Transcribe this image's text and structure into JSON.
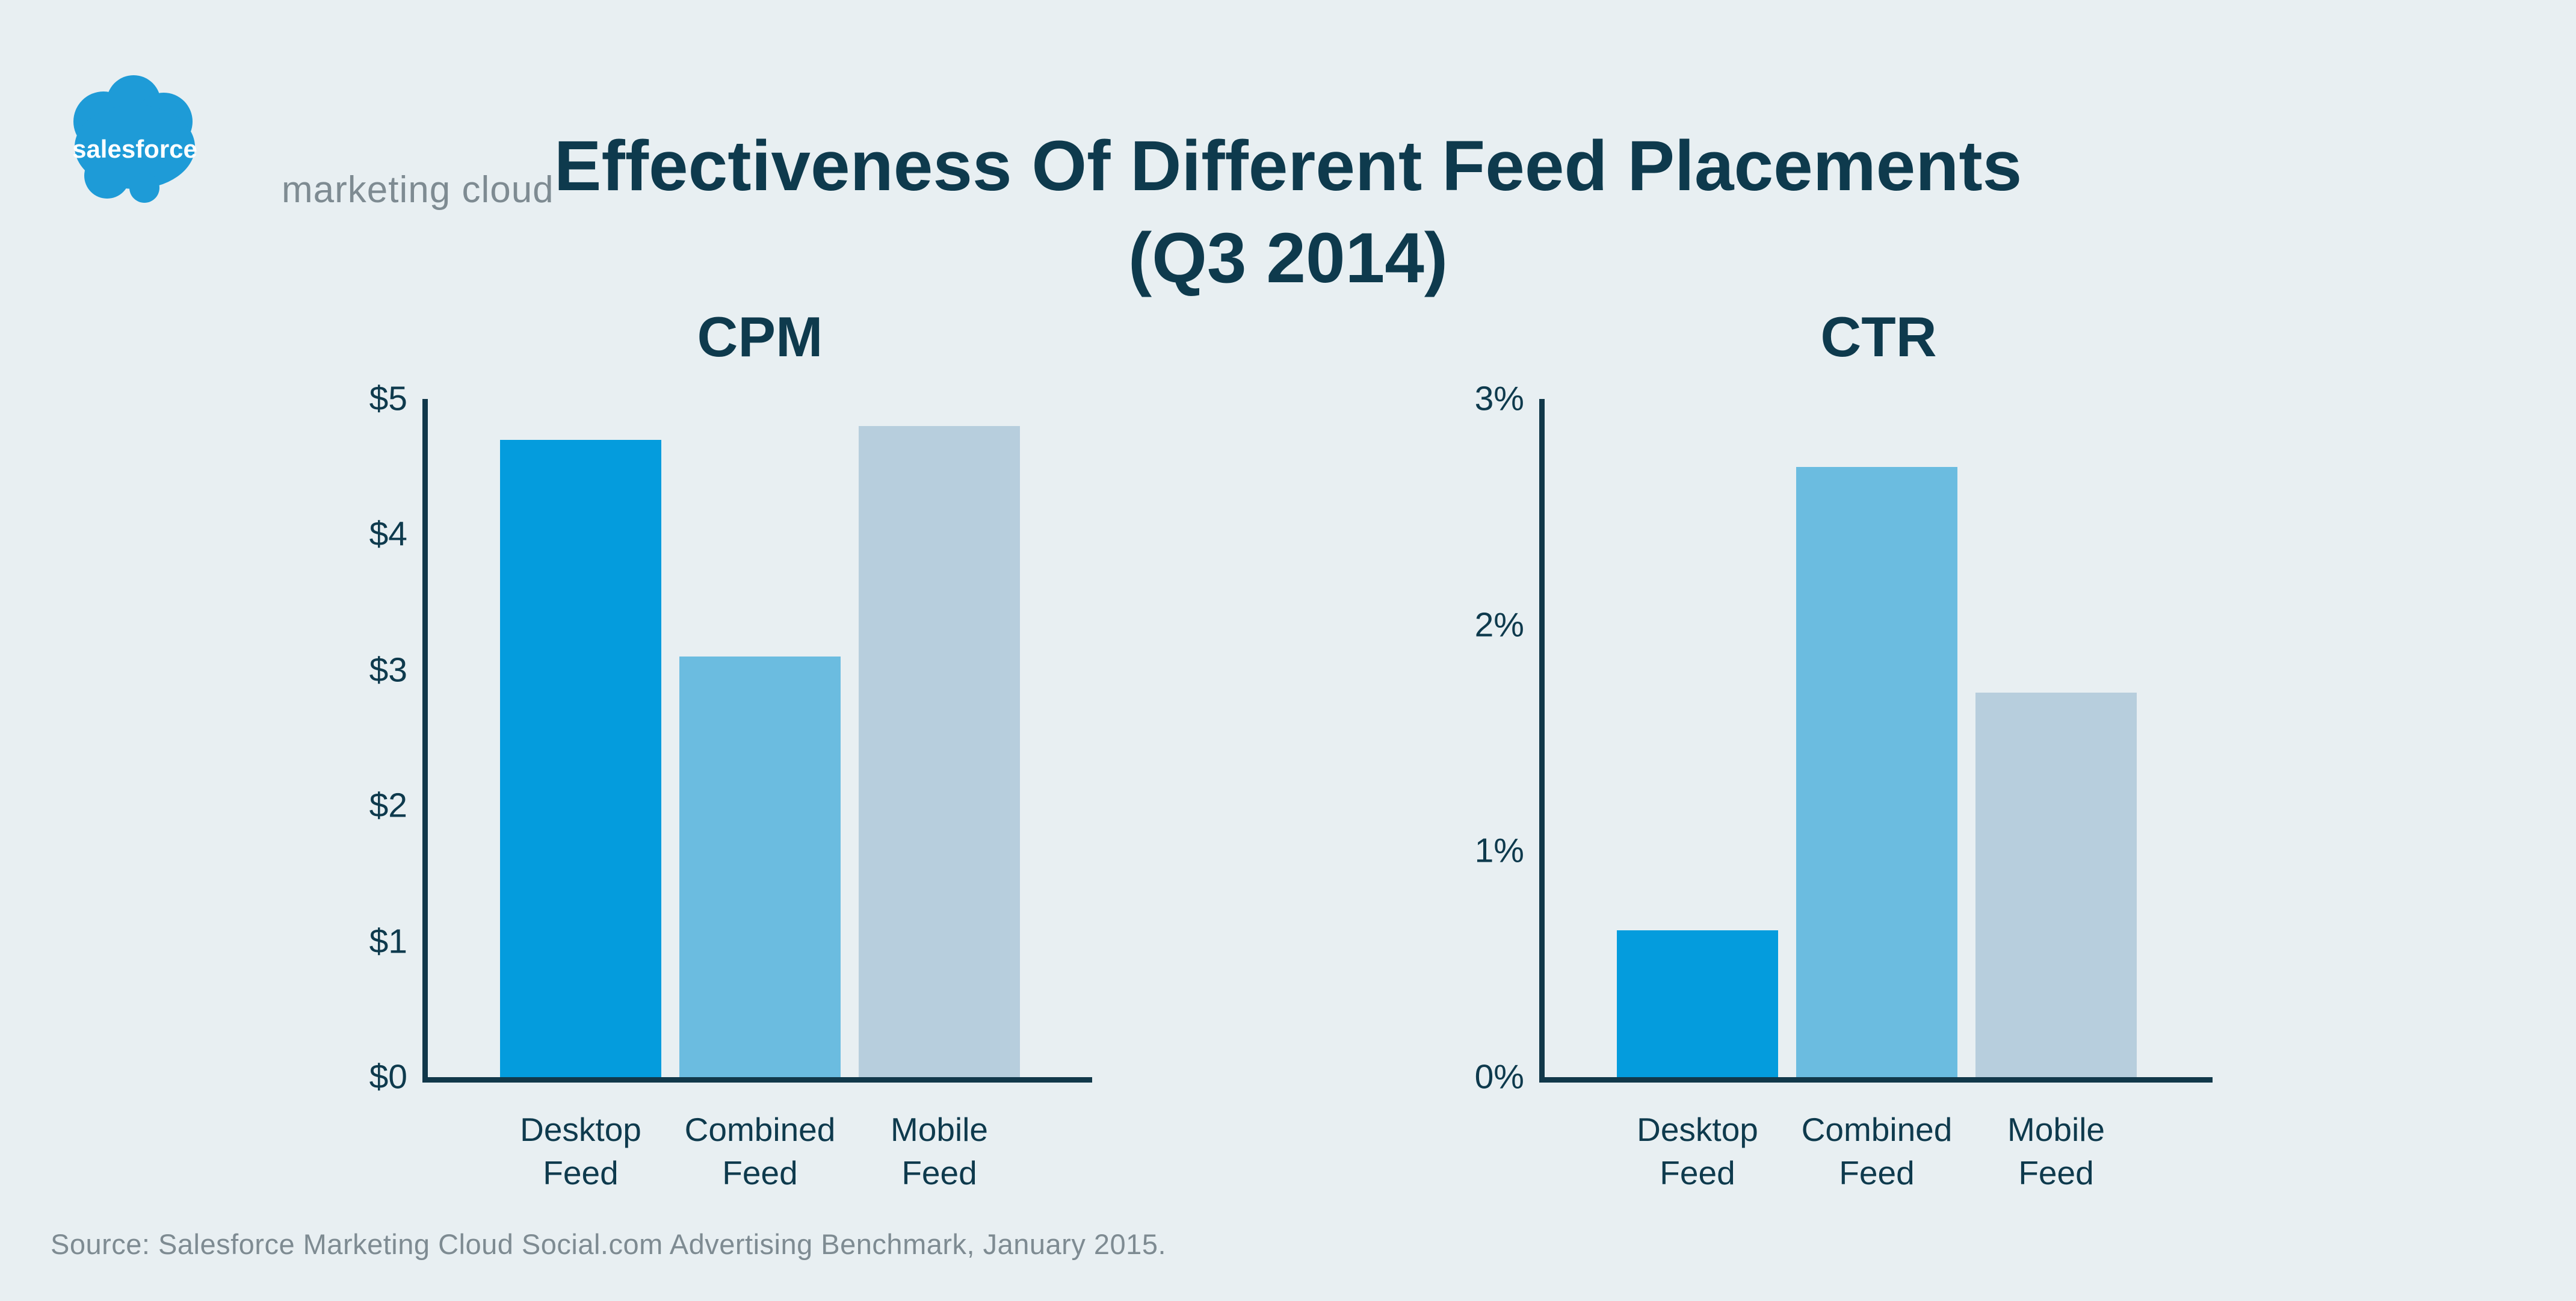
{
  "logo": {
    "brand": "salesforce",
    "suffix": "marketing cloud",
    "cloud_color": "#1E9BD7"
  },
  "title": {
    "line1": "Effectiveness Of Different Feed Placements",
    "line2": "(Q3 2014)"
  },
  "source": "Source: Salesforce Marketing Cloud Social.com Advertising Benchmark, January 2015.",
  "colors": {
    "background": "#E8EFF2",
    "text_dark": "#0E3A4D",
    "axis": "#11384A",
    "text_gray": "#7E8B92",
    "bar_desktop": "#049CDD",
    "bar_combined": "#6BBCE0",
    "bar_mobile": "#B7CEDD"
  },
  "chart_data": [
    {
      "type": "bar",
      "title": "CPM",
      "categories": [
        "Desktop Feed",
        "Combined Feed",
        "Mobile Feed"
      ],
      "values": [
        4.7,
        3.1,
        4.8
      ],
      "bar_colors": [
        "#049CDD",
        "#6BBCE0",
        "#B7CEDD"
      ],
      "ticks": [
        "$5",
        "$4",
        "$3",
        "$2",
        "$1",
        "$0"
      ],
      "ylim": [
        0,
        5
      ],
      "xlabel": "",
      "ylabel": "",
      "grid": false,
      "legend": false
    },
    {
      "type": "bar",
      "title": "CTR",
      "categories": [
        "Desktop Feed",
        "Combined Feed",
        "Mobile Feed"
      ],
      "values": [
        0.65,
        2.7,
        1.7
      ],
      "bar_colors": [
        "#049CDD",
        "#6BBCE0",
        "#B7CEDD"
      ],
      "ticks": [
        "3%",
        "2%",
        "1%",
        "0%"
      ],
      "ylim": [
        0,
        3
      ],
      "xlabel": "",
      "ylabel": "",
      "grid": false,
      "legend": false
    }
  ]
}
